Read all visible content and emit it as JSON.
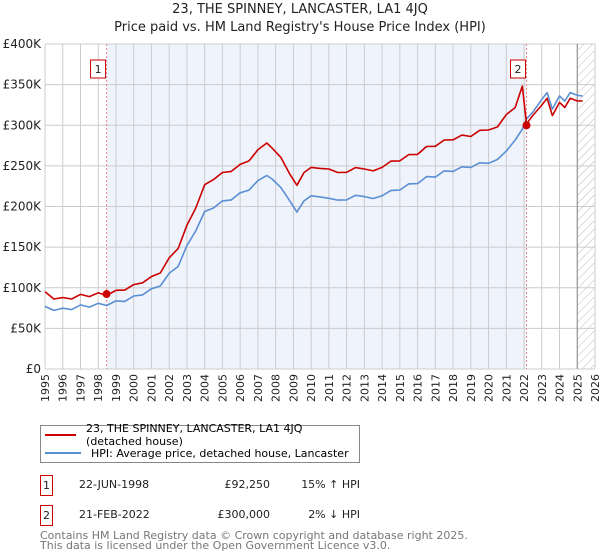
{
  "chart_data": {
    "type": "line",
    "title": "23, THE SPINNEY, LANCASTER, LA1 4JQ",
    "subtitle": "Price paid vs. HM Land Registry's House Price Index (HPI)",
    "xlim": [
      1995,
      2026
    ],
    "ylim": [
      0,
      400000
    ],
    "x_ticks": [
      "1995",
      "1996",
      "1997",
      "1998",
      "1999",
      "2000",
      "2001",
      "2002",
      "2003",
      "2004",
      "2005",
      "2006",
      "2007",
      "2008",
      "2009",
      "2010",
      "2011",
      "2012",
      "2013",
      "2014",
      "2015",
      "2016",
      "2017",
      "2018",
      "2019",
      "2020",
      "2021",
      "2022",
      "2023",
      "2024",
      "2025",
      "2026"
    ],
    "y_ticks": [
      {
        "v": 0,
        "label": "£0"
      },
      {
        "v": 50000,
        "label": "£50K"
      },
      {
        "v": 100000,
        "label": "£100K"
      },
      {
        "v": 150000,
        "label": "£150K"
      },
      {
        "v": 200000,
        "label": "£200K"
      },
      {
        "v": 250000,
        "label": "£250K"
      },
      {
        "v": 300000,
        "label": "£300K"
      },
      {
        "v": 350000,
        "label": "£350K"
      },
      {
        "v": 400000,
        "label": "£400K"
      }
    ],
    "grid": true,
    "series": [
      {
        "name": "23, THE SPINNEY, LANCASTER, LA1 4JQ (detached house)",
        "color": "#cc0000",
        "x": [
          1995,
          1995.5,
          1996,
          1996.5,
          1997,
          1997.5,
          1998,
          1998.47,
          1999,
          1999.5,
          2000,
          2000.5,
          2001,
          2001.5,
          2002,
          2002.5,
          2003,
          2003.5,
          2004,
          2004.5,
          2005,
          2005.5,
          2006,
          2006.5,
          2007,
          2007.5,
          2007.8,
          2008.3,
          2008.8,
          2009.2,
          2009.6,
          2010,
          2010.5,
          2011,
          2011.5,
          2012,
          2012.5,
          2013,
          2013.5,
          2014,
          2014.5,
          2015,
          2015.5,
          2016,
          2016.5,
          2017,
          2017.5,
          2018,
          2018.5,
          2019,
          2019.5,
          2020,
          2020.5,
          2021,
          2021.5,
          2021.9,
          2022.14,
          2022.5,
          2023,
          2023.3,
          2023.6,
          2024,
          2024.3,
          2024.6,
          2025,
          2025.3
        ],
        "y": [
          95000,
          88000,
          86000,
          88000,
          90000,
          91000,
          92000,
          92250,
          95000,
          99000,
          102000,
          108000,
          112000,
          120000,
          135000,
          150000,
          175000,
          200000,
          225000,
          235000,
          240000,
          245000,
          250000,
          258000,
          268000,
          280000,
          270000,
          262000,
          238000,
          228000,
          240000,
          250000,
          245000,
          248000,
          240000,
          244000,
          246000,
          248000,
          242000,
          250000,
          254000,
          258000,
          262000,
          266000,
          272000,
          276000,
          280000,
          284000,
          286000,
          288000,
          292000,
          296000,
          296000,
          315000,
          320000,
          350000,
          300000,
          314000,
          323000,
          335000,
          310000,
          330000,
          320000,
          335000,
          328000,
          330000
        ]
      },
      {
        "name": "HPI: Average price, detached house, Lancaster",
        "color": "#5b8fd4",
        "x": [
          1995,
          1995.5,
          1996,
          1996.5,
          1997,
          1997.5,
          1998,
          1998.47,
          1999,
          1999.5,
          2000,
          2000.5,
          2001,
          2001.5,
          2002,
          2002.5,
          2003,
          2003.5,
          2004,
          2004.5,
          2005,
          2005.5,
          2006,
          2006.5,
          2007,
          2007.5,
          2007.8,
          2008.3,
          2008.8,
          2009.2,
          2009.6,
          2010,
          2010.5,
          2011,
          2011.5,
          2012,
          2012.5,
          2013,
          2013.5,
          2014,
          2014.5,
          2015,
          2015.5,
          2016,
          2016.5,
          2017,
          2017.5,
          2018,
          2018.5,
          2019,
          2019.5,
          2020,
          2020.5,
          2021,
          2021.5,
          2021.9,
          2022.14,
          2022.5,
          2023,
          2023.3,
          2023.6,
          2024,
          2024.3,
          2024.6,
          2025,
          2025.3
        ],
        "y": [
          77000,
          74000,
          73000,
          75000,
          77000,
          78000,
          79000,
          80000,
          82000,
          85000,
          88000,
          93000,
          97000,
          104000,
          116000,
          128000,
          150000,
          172000,
          192000,
          200000,
          205000,
          210000,
          215000,
          222000,
          230000,
          240000,
          232000,
          225000,
          205000,
          195000,
          205000,
          215000,
          210000,
          212000,
          206000,
          210000,
          212000,
          214000,
          208000,
          215000,
          218000,
          222000,
          226000,
          230000,
          235000,
          238000,
          242000,
          245000,
          247000,
          250000,
          252000,
          255000,
          256000,
          270000,
          280000,
          297000,
          306000,
          318000,
          330000,
          342000,
          318000,
          338000,
          328000,
          342000,
          335000,
          336000
        ]
      }
    ],
    "sales": [
      {
        "id": "1",
        "x": 1998.47,
        "y": 92250
      },
      {
        "id": "2",
        "x": 2022.14,
        "y": 300000
      }
    ]
  },
  "legend": {
    "property": "23, THE SPINNEY, LANCASTER, LA1 4JQ (detached house)",
    "hpi": "HPI: Average price, detached house, Lancaster"
  },
  "transactions": [
    {
      "id": "1",
      "date": "22-JUN-1998",
      "price": "£92,250",
      "hpi": "15% ↑ HPI"
    },
    {
      "id": "2",
      "date": "21-FEB-2022",
      "price": "£300,000",
      "hpi": "2% ↓ HPI"
    }
  ],
  "footer": {
    "line1": "Contains HM Land Registry data © Crown copyright and database right 2025.",
    "line2": "This data is licensed under the Open Government Licence v3.0."
  }
}
